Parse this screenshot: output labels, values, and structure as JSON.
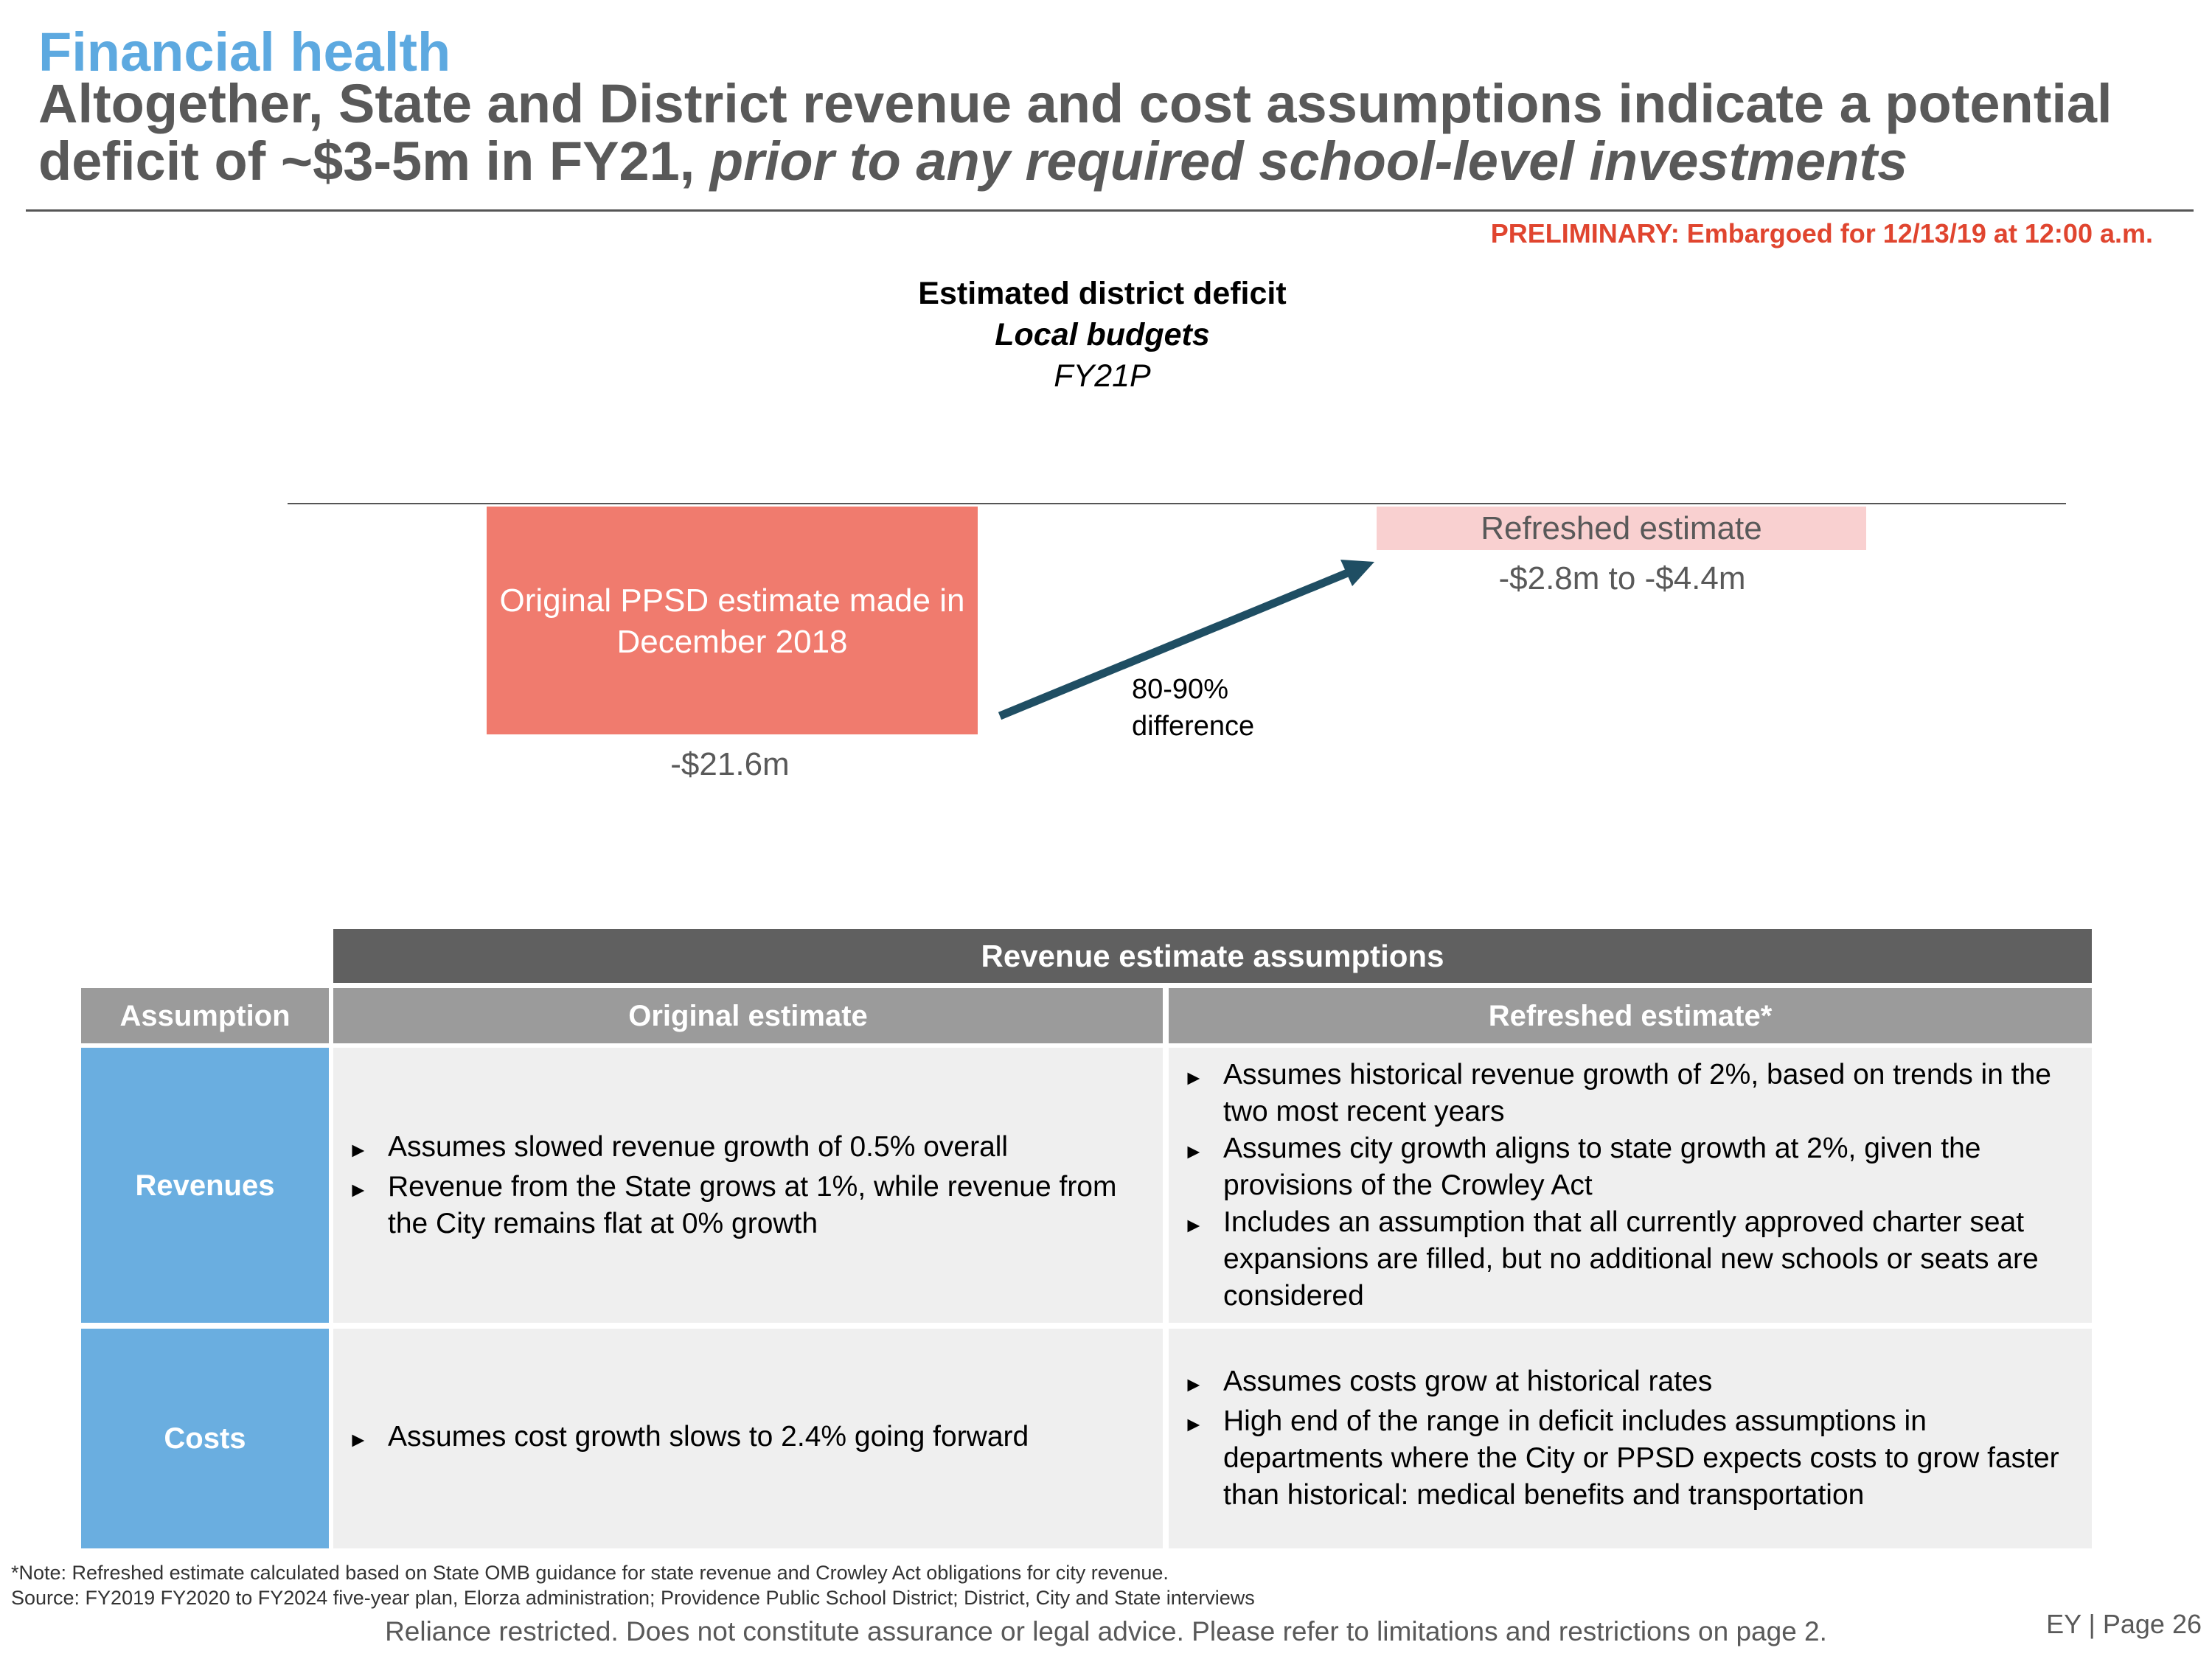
{
  "header": {
    "kicker": "Financial health",
    "headline_line1": "Altogether, State and District revenue and cost assumptions indicate a potential",
    "headline_line2_plain": "deficit of ~$3-5m in FY21, ",
    "headline_line2_italic": "prior to any required school-level investments",
    "preliminary": "PRELIMINARY: Embargoed for 12/13/19 at 12:00 a.m."
  },
  "chart": {
    "title": "Estimated district deficit",
    "subtitle": "Local budgets",
    "period": "FY21P",
    "original_label": "Original PPSD estimate made in December 2018",
    "original_value": "-$21.6m",
    "refreshed_label": "Refreshed estimate",
    "refreshed_value": "-$2.8m to -$4.4m",
    "difference_line1": "80-90%",
    "difference_line2": "difference",
    "colors": {
      "original": "#F07B6E",
      "refreshed": "#F9D0D0",
      "arrow": "#1F4E63"
    }
  },
  "table": {
    "group_header": "Revenue estimate assumptions",
    "columns": [
      "Assumption",
      "Original estimate",
      "Refreshed estimate*"
    ],
    "rows": [
      {
        "label": "Revenues",
        "original": [
          "Assumes slowed revenue growth of 0.5% overall",
          "Revenue from the State grows at 1%, while revenue from the City remains flat at 0% growth"
        ],
        "refreshed": [
          "Assumes historical revenue growth of 2%, based on trends in the two most recent years",
          "Assumes city growth aligns to state growth at 2%, given the provisions of the Crowley Act",
          "Includes an assumption that all currently approved charter seat expansions are filled, but no additional new schools or seats are considered"
        ]
      },
      {
        "label": "Costs",
        "original": [
          "Assumes cost growth slows to 2.4% going forward"
        ],
        "refreshed": [
          "Assumes costs grow at historical rates",
          "High end of the range in deficit includes assumptions in departments where the City or PPSD expects costs to grow faster than historical: medical benefits and transportation"
        ]
      }
    ],
    "bullet": "►"
  },
  "footer": {
    "note": "*Note: Refreshed estimate calculated based on State OMB guidance for state revenue and Crowley Act obligations for city revenue.",
    "source": "Source: FY2019 FY2020 to FY2024 five-year plan, Elorza administration; Providence Public School District; District, City and State interviews",
    "disclaimer": "Reliance restricted. Does not constitute assurance or legal advice. Please refer to limitations and restrictions on page 2.",
    "page": "EY | Page 26"
  }
}
